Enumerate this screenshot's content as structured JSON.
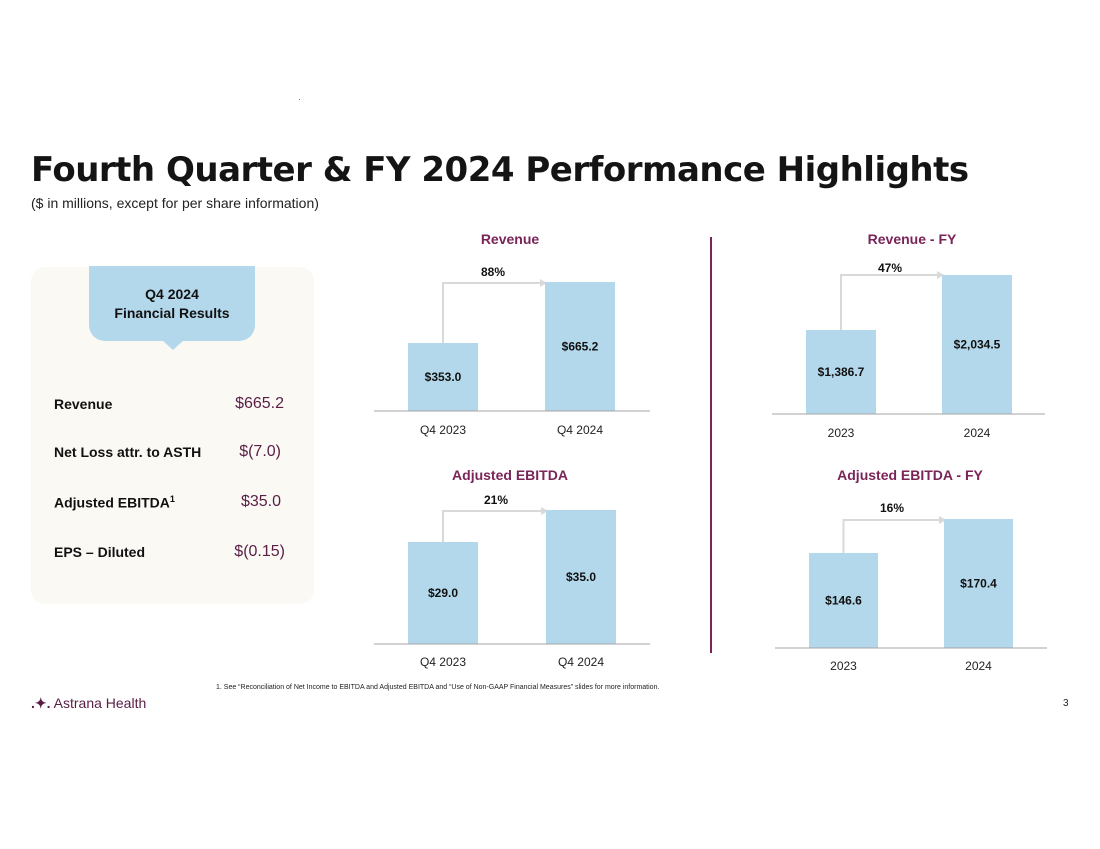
{
  "header": {
    "title": "Fourth Quarter & FY 2024 Performance Highlights",
    "subtitle": "($ in millions, except for per share information)"
  },
  "summary": {
    "heading_line1": "Q4 2024",
    "heading_line2": "Financial Results",
    "rows": [
      {
        "label": "Revenue",
        "value": "$665.2"
      },
      {
        "label": "Net Loss attr. to ASTH",
        "value": "$(7.0)"
      },
      {
        "label": "Adjusted EBITDA",
        "sup": "1",
        "value": "$35.0"
      },
      {
        "label": "EPS – Diluted",
        "value": "$(0.15)"
      }
    ]
  },
  "chart_data": [
    {
      "type": "bar",
      "title": "Revenue",
      "categories": [
        "Q4 2023",
        "Q4 2024"
      ],
      "values": [
        353.0,
        665.2
      ],
      "value_labels": [
        "$353.0",
        "$665.2"
      ],
      "growth_label": "88%"
    },
    {
      "type": "bar",
      "title": "Revenue  - FY",
      "categories": [
        "2023",
        "2024"
      ],
      "values": [
        1386.7,
        2034.5
      ],
      "value_labels": [
        "$1,386.7",
        "$2,034.5"
      ],
      "growth_label": "47%"
    },
    {
      "type": "bar",
      "title": "Adjusted EBITDA",
      "categories": [
        "Q4 2023",
        "Q4 2024"
      ],
      "values": [
        29.0,
        35.0
      ],
      "value_labels": [
        "$29.0",
        "$35.0"
      ],
      "growth_label": "21%"
    },
    {
      "type": "bar",
      "title": "Adjusted EBITDA - FY",
      "categories": [
        "2023",
        "2024"
      ],
      "values": [
        146.6,
        170.4
      ],
      "value_labels": [
        "$146.6",
        "$170.4"
      ],
      "growth_label": "16%"
    }
  ],
  "footer": {
    "footnote": "1.      See “Reconciliation of Net Income to EBITDA and Adjusted EBITDA  and  “Use of Non-GAAP Financial Measures” slides for more information.",
    "logo_mark": ".✦.",
    "logo_text": "Astrana Health",
    "page_number": "3"
  },
  "colors": {
    "bar": "#b3d8eb",
    "accent": "#7a2457",
    "arrow": "#d9d9d9",
    "axis": "#a6a6a6"
  }
}
